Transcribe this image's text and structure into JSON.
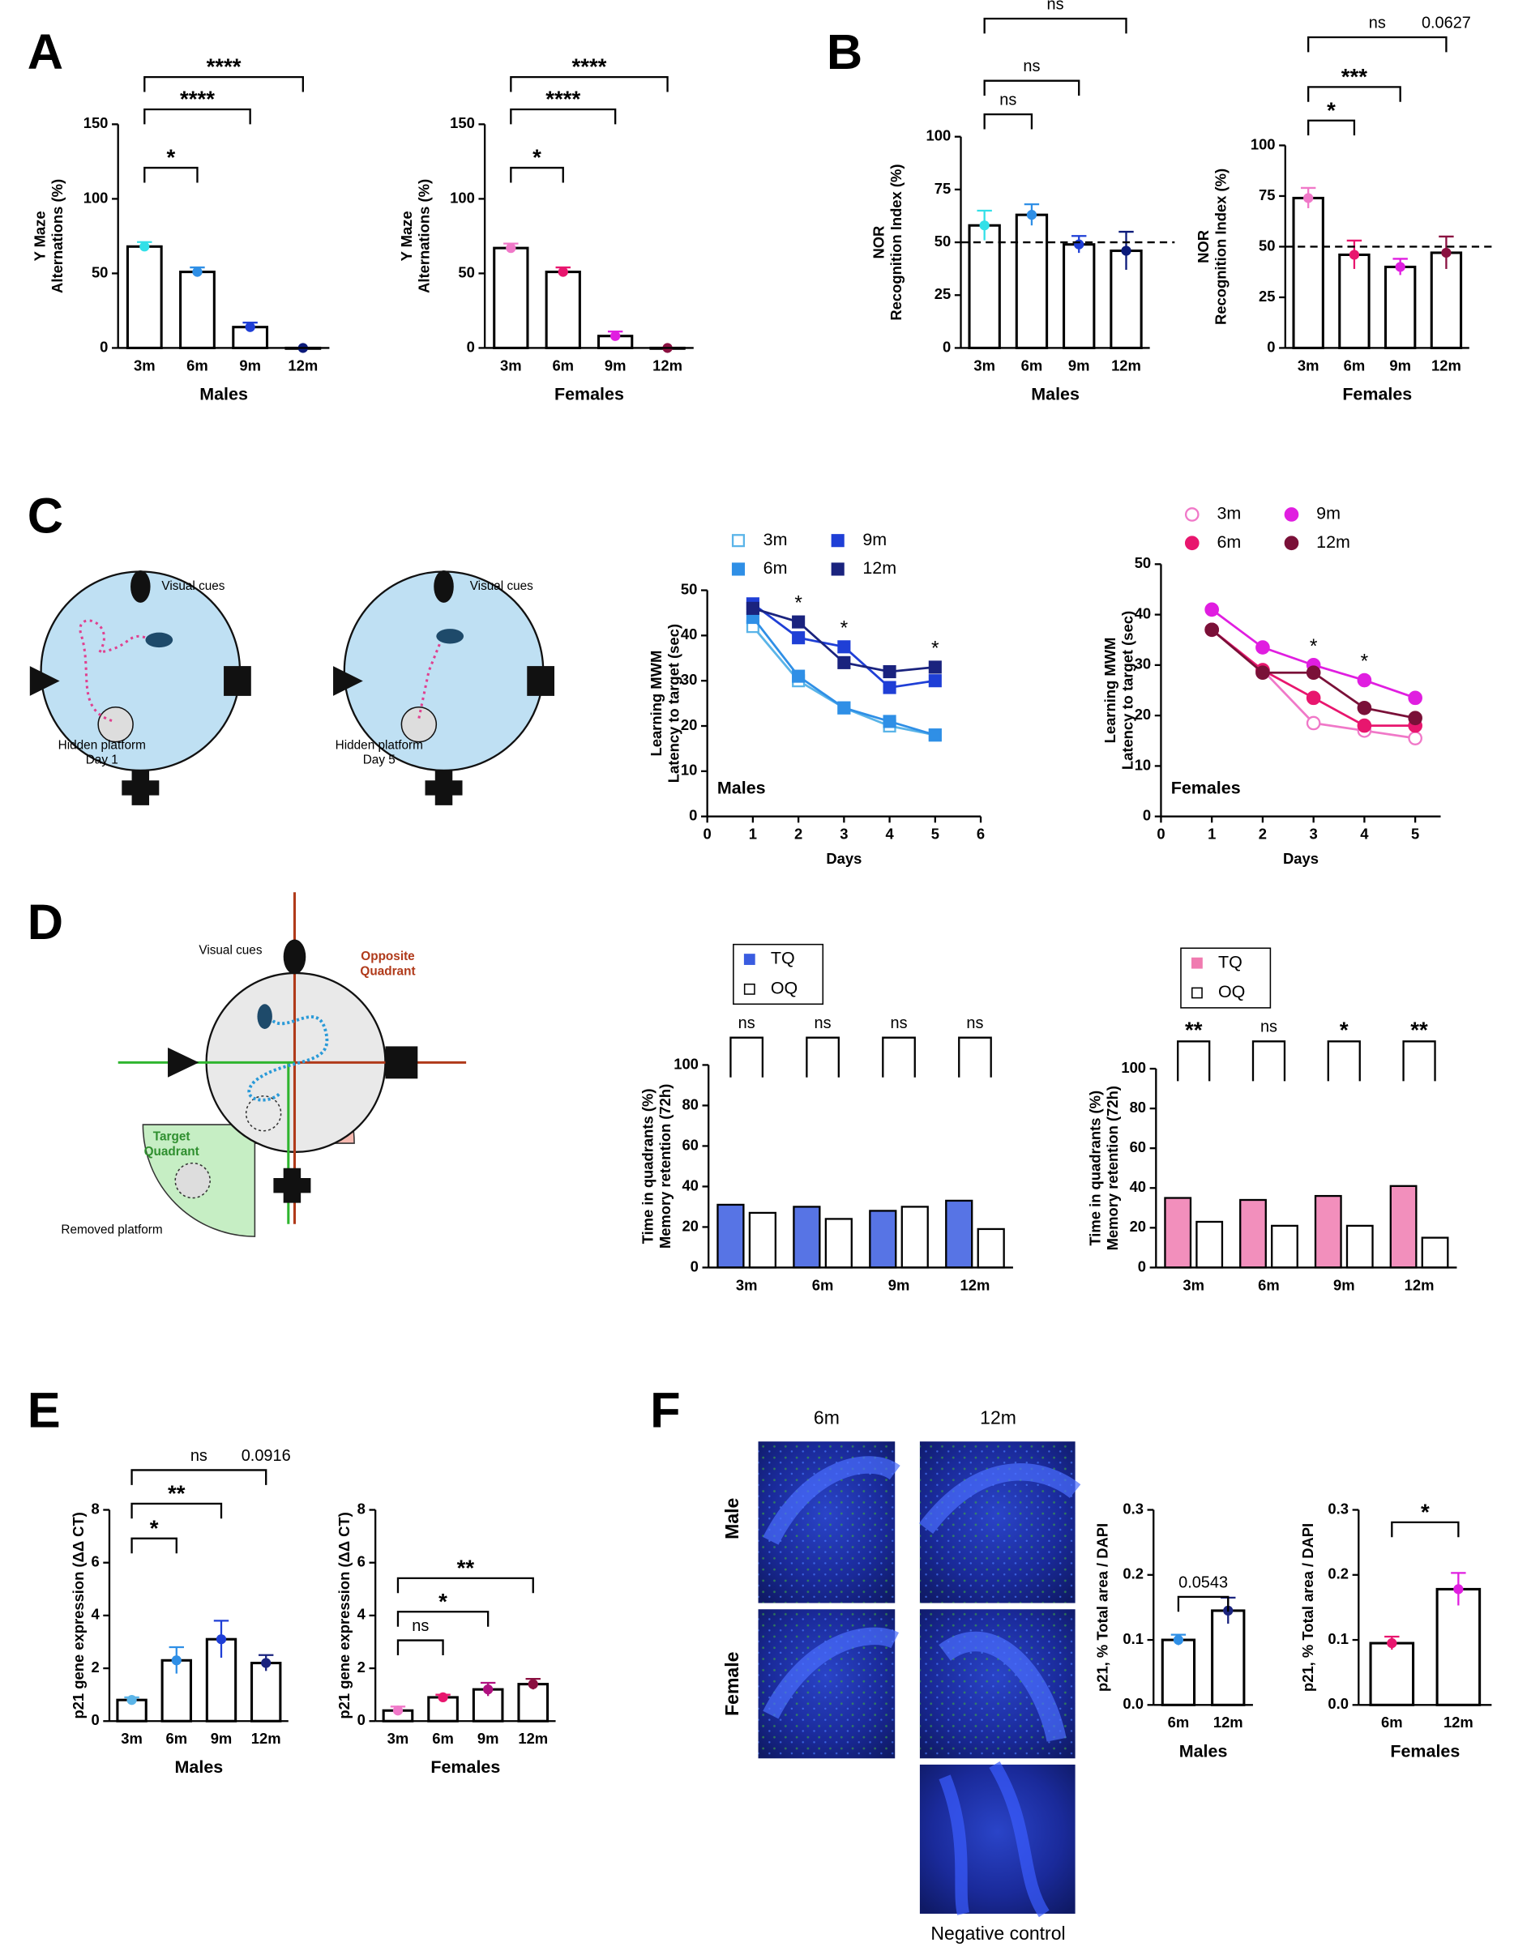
{
  "panel_labels": [
    "A",
    "B",
    "C",
    "D",
    "E",
    "F"
  ],
  "diagram_texts": {
    "c_day1_cues": "Visual cues",
    "c_day1_platform": [
      "Hidden platform",
      "Day 1"
    ],
    "c_day5_cues": "Visual cues",
    "c_day5_platform": [
      "Hidden platform",
      "Day 5"
    ],
    "d_cues": "Visual cues",
    "d_opposite": [
      "Opposite",
      "Quadrant"
    ],
    "d_target": [
      "Target",
      "Quadrant"
    ],
    "d_removed": "Removed platform"
  },
  "micrographs": {
    "columns": [
      "6m",
      "12m"
    ],
    "rows": [
      "Male",
      "Female"
    ],
    "caption": "Negative control"
  },
  "chart_data": [
    {
      "type": "bar",
      "categories": [
        "3m",
        "6m",
        "9m",
        "12m"
      ],
      "values": [
        68,
        51,
        14,
        0
      ],
      "errors": [
        3,
        3,
        3,
        0
      ],
      "colors": [
        "#33e0e8",
        "#2f8fe6",
        "#1f3fd6",
        "#0b1a7a"
      ],
      "ylim": [
        0,
        150
      ],
      "yticks": [
        0,
        50,
        100,
        150
      ],
      "ylabel": [
        "Y Maze",
        "Alternations (%)"
      ],
      "xlabel": "Males",
      "brackets": [
        {
          "between": [
            "3m",
            "6m"
          ],
          "label": "*"
        },
        {
          "between": [
            "3m",
            "9m"
          ],
          "label": "****"
        },
        {
          "between": [
            "3m",
            "12m"
          ],
          "label": "****"
        }
      ]
    },
    {
      "type": "bar",
      "categories": [
        "3m",
        "6m",
        "9m",
        "12m"
      ],
      "values": [
        67,
        51,
        8,
        0
      ],
      "errors": [
        3,
        3,
        3,
        0
      ],
      "colors": [
        "#f078c8",
        "#e8166e",
        "#e01ee0",
        "#8a1040"
      ],
      "ylim": [
        0,
        150
      ],
      "yticks": [
        0,
        50,
        100,
        150
      ],
      "ylabel": [
        "Y Maze",
        "Alternations (%)"
      ],
      "xlabel": "Females",
      "brackets": [
        {
          "between": [
            "3m",
            "6m"
          ],
          "label": "*"
        },
        {
          "between": [
            "3m",
            "9m"
          ],
          "label": "****"
        },
        {
          "between": [
            "3m",
            "12m"
          ],
          "label": "****"
        }
      ]
    },
    {
      "type": "bar",
      "categories": [
        "3m",
        "6m",
        "9m",
        "12m"
      ],
      "values": [
        58,
        63,
        49,
        46
      ],
      "errors": [
        7,
        5,
        4,
        9
      ],
      "colors": [
        "#33e0e8",
        "#2f8fe6",
        "#1f3fd6",
        "#0b1a7a"
      ],
      "ylim": [
        0,
        100
      ],
      "yticks": [
        0,
        25,
        50,
        75,
        100
      ],
      "hline": 50,
      "ylabel": [
        "NOR",
        "Recognition Index  (%)"
      ],
      "xlabel": "Males",
      "brackets": [
        {
          "between": [
            "3m",
            "6m"
          ],
          "label": "ns"
        },
        {
          "between": [
            "3m",
            "9m"
          ],
          "label": "ns"
        },
        {
          "between": [
            "3m",
            "12m"
          ],
          "label": "ns"
        }
      ]
    },
    {
      "type": "bar",
      "categories": [
        "3m",
        "6m",
        "9m",
        "12m"
      ],
      "values": [
        74,
        46,
        40,
        47
      ],
      "errors": [
        5,
        7,
        4,
        8
      ],
      "colors": [
        "#f078c8",
        "#e8166e",
        "#e01ee0",
        "#8a1040"
      ],
      "ylim": [
        0,
        100
      ],
      "yticks": [
        0,
        25,
        50,
        75,
        100
      ],
      "hline": 50,
      "ylabel": [
        "NOR",
        "Recognition Index  (%)"
      ],
      "xlabel": "Females",
      "brackets": [
        {
          "between": [
            "3m",
            "6m"
          ],
          "label": "*"
        },
        {
          "between": [
            "3m",
            "9m"
          ],
          "label": "***"
        },
        {
          "between": [
            "3m",
            "12m"
          ],
          "label": "ns",
          "note": "0.0627"
        }
      ]
    },
    {
      "type": "line",
      "x": [
        1,
        2,
        3,
        4,
        5
      ],
      "xlim": [
        0,
        6
      ],
      "xticks": [
        0,
        1,
        2,
        3,
        4,
        5,
        6
      ],
      "ylim": [
        0,
        50
      ],
      "yticks": [
        0,
        10,
        20,
        30,
        40,
        50
      ],
      "xlabel": "Days",
      "ylabel": [
        "Learning MWM",
        "Latency to target (sec)"
      ],
      "group_label": "Males",
      "series": [
        {
          "name": "3m",
          "color": "#5ab4e8",
          "marker": "open-square",
          "values": [
            42,
            30,
            24,
            20,
            18
          ]
        },
        {
          "name": "6m",
          "color": "#2f8fe6",
          "marker": "square",
          "values": [
            44,
            31,
            24,
            21,
            18
          ]
        },
        {
          "name": "9m",
          "color": "#1f3fd6",
          "marker": "square",
          "values": [
            47,
            39.5,
            37.5,
            28.5,
            30
          ]
        },
        {
          "name": "12m",
          "color": "#1a237e",
          "marker": "square",
          "values": [
            46,
            43,
            34,
            32,
            33
          ]
        }
      ],
      "annotations": [
        {
          "x": 2,
          "text": "*"
        },
        {
          "x": 3,
          "text": "*"
        },
        {
          "x": 5,
          "text": "*"
        }
      ]
    },
    {
      "type": "line",
      "x": [
        1,
        2,
        3,
        4,
        5
      ],
      "xlim": [
        0,
        5.5
      ],
      "xticks": [
        0,
        1,
        2,
        3,
        4,
        5
      ],
      "ylim": [
        0,
        50
      ],
      "yticks": [
        0,
        10,
        20,
        30,
        40,
        50
      ],
      "xlabel": "Days",
      "ylabel": [
        "Learning MWM",
        "Latency to target (sec)"
      ],
      "group_label": "Females",
      "series": [
        {
          "name": "3m",
          "color": "#f078c8",
          "marker": "open-circle",
          "values": [
            37,
            29,
            18.5,
            17,
            15.5
          ]
        },
        {
          "name": "6m",
          "color": "#e8166e",
          "marker": "circle",
          "values": [
            37,
            29,
            23.5,
            18,
            18
          ]
        },
        {
          "name": "9m",
          "color": "#e01ee0",
          "marker": "circle",
          "values": [
            41,
            33.5,
            30,
            27,
            23.5
          ]
        },
        {
          "name": "12m",
          "color": "#7a1038",
          "marker": "circle",
          "values": [
            37,
            28.5,
            28.5,
            21.5,
            19.5
          ]
        }
      ],
      "annotations": [
        {
          "x": 3,
          "text": "*"
        },
        {
          "x": 4,
          "text": "*"
        }
      ]
    },
    {
      "type": "grouped_bar",
      "categories": [
        "3m",
        "6m",
        "9m",
        "12m"
      ],
      "ylim": [
        0,
        100
      ],
      "yticks": [
        0,
        20,
        40,
        60,
        80,
        100
      ],
      "ylabel": [
        "Time in quadrants (%)",
        "Memory retention (72h)"
      ],
      "series": [
        {
          "name": "TQ",
          "color": "#3a5ce0",
          "values": [
            31,
            30,
            28,
            33
          ]
        },
        {
          "name": "OQ",
          "color": "#ffffff",
          "values": [
            27,
            24,
            30,
            19
          ]
        }
      ],
      "pair_labels": [
        "ns",
        "ns",
        "ns",
        "ns"
      ]
    },
    {
      "type": "grouped_bar",
      "categories": [
        "3m",
        "6m",
        "9m",
        "12m"
      ],
      "ylim": [
        0,
        100
      ],
      "yticks": [
        0,
        20,
        40,
        60,
        80,
        100
      ],
      "ylabel": [
        "Time in quadrants (%)",
        "Memory retention (72h)"
      ],
      "series": [
        {
          "name": "TQ",
          "color": "#f07bb0",
          "values": [
            35,
            34,
            36,
            41
          ]
        },
        {
          "name": "OQ",
          "color": "#ffffff",
          "values": [
            23,
            21,
            21,
            15
          ]
        }
      ],
      "pair_labels": [
        "**",
        "ns",
        "*",
        "**"
      ]
    },
    {
      "type": "bar",
      "categories": [
        "3m",
        "6m",
        "9m",
        "12m"
      ],
      "values": [
        0.8,
        2.3,
        3.1,
        2.2
      ],
      "errors": [
        0.1,
        0.5,
        0.7,
        0.3
      ],
      "colors": [
        "#5ab4e8",
        "#2f8fe6",
        "#1f3fd6",
        "#1a237e"
      ],
      "ylim": [
        0,
        8
      ],
      "yticks": [
        0,
        2,
        4,
        6,
        8
      ],
      "ylabel": [
        "p21 gene expression (ΔΔ CT)"
      ],
      "xlabel": "Males",
      "brackets": [
        {
          "between": [
            "3m",
            "6m"
          ],
          "label": "*"
        },
        {
          "between": [
            "3m",
            "9m"
          ],
          "label": "**"
        },
        {
          "between": [
            "3m",
            "12m"
          ],
          "label": "ns",
          "note": "0.0916"
        }
      ]
    },
    {
      "type": "bar",
      "categories": [
        "3m",
        "6m",
        "9m",
        "12m"
      ],
      "values": [
        0.4,
        0.9,
        1.2,
        1.4
      ],
      "errors": [
        0.15,
        0.1,
        0.25,
        0.2
      ],
      "colors": [
        "#f078c8",
        "#e8166e",
        "#b01080",
        "#8a1040"
      ],
      "ylim": [
        0,
        8
      ],
      "yticks": [
        0,
        2,
        4,
        6,
        8
      ],
      "ylabel": [
        "p21 gene expression (ΔΔ CT)"
      ],
      "xlabel": "Females",
      "brackets": [
        {
          "between": [
            "3m",
            "6m"
          ],
          "label": "ns"
        },
        {
          "between": [
            "3m",
            "9m"
          ],
          "label": "*"
        },
        {
          "between": [
            "3m",
            "12m"
          ],
          "label": "**"
        }
      ]
    },
    {
      "type": "bar",
      "categories": [
        "6m",
        "12m"
      ],
      "values": [
        0.1,
        0.145
      ],
      "errors": [
        0.008,
        0.02
      ],
      "colors": [
        "#2f8fe6",
        "#1a237e"
      ],
      "ylim": [
        0,
        0.3
      ],
      "yticks": [
        {
          "value": 0,
          "label": "0.0"
        },
        0.1,
        0.2,
        0.3
      ],
      "ylabel": [
        "p21, % Total area / DAPI"
      ],
      "xlabel": "Males",
      "brackets": [
        {
          "between": [
            "6m",
            "12m"
          ],
          "label": "0.0543"
        }
      ]
    },
    {
      "type": "bar",
      "categories": [
        "6m",
        "12m"
      ],
      "values": [
        0.095,
        0.178
      ],
      "errors": [
        0.01,
        0.025
      ],
      "colors": [
        "#e8166e",
        "#e01ee0"
      ],
      "ylim": [
        0,
        0.3
      ],
      "yticks": [
        {
          "value": 0,
          "label": "0.0"
        },
        0.1,
        0.2,
        0.3
      ],
      "ylabel": [
        "p21, % Total area / DAPI"
      ],
      "xlabel": "Females",
      "brackets": [
        {
          "between": [
            "6m",
            "12m"
          ],
          "label": "*"
        }
      ]
    }
  ]
}
